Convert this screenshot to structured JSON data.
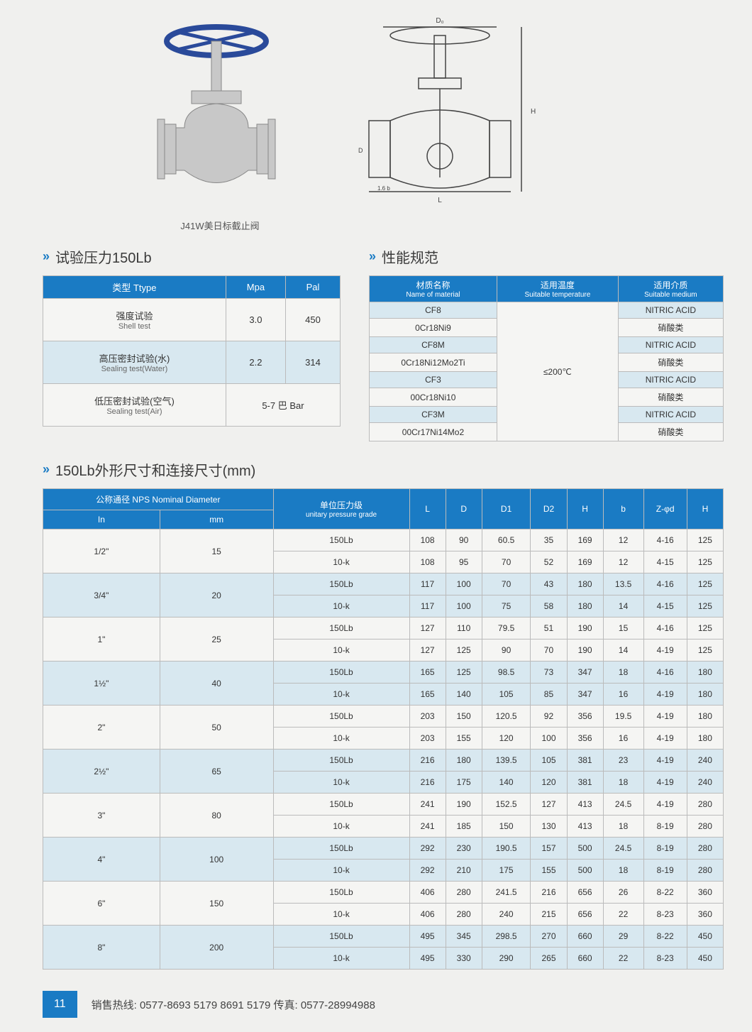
{
  "images": {
    "photo_caption": "J41W美日标截止阀"
  },
  "section1": {
    "title": "试验压力150Lb",
    "headers": [
      "类型 Ttype",
      "Mpa",
      "Pal"
    ],
    "rows": [
      {
        "label_cn": "强度试验",
        "label_en": "Shell test",
        "mpa": "3.0",
        "pal": "450"
      },
      {
        "label_cn": "高压密封试验(水)",
        "label_en": "Sealing test(Water)",
        "mpa": "2.2",
        "pal": "314"
      },
      {
        "label_cn": "低压密封试验(空气)",
        "label_en": "Sealing test(Air)",
        "mpa": "",
        "pal": "5-7 巴 Bar",
        "merged": true
      }
    ]
  },
  "section2": {
    "title": "性能规范",
    "headers": [
      {
        "cn": "材质名称",
        "en": "Name of material"
      },
      {
        "cn": "适用温度",
        "en": "Suitable temperature"
      },
      {
        "cn": "适用介质",
        "en": "Suitable medium"
      }
    ],
    "temp": "≤200℃",
    "rows": [
      {
        "material": "CF8",
        "medium": "NITRIC ACID"
      },
      {
        "material": "0Cr18Ni9",
        "medium": "硝酸类"
      },
      {
        "material": "CF8M",
        "medium": "NITRIC ACID"
      },
      {
        "material": "0Cr18Ni12Mo2Ti",
        "medium": "硝酸类"
      },
      {
        "material": "CF3",
        "medium": "NITRIC ACID"
      },
      {
        "material": "00Cr18Ni10",
        "medium": "硝酸类"
      },
      {
        "material": "CF3M",
        "medium": "NITRIC ACID"
      },
      {
        "material": "00Cr17Ni14Mo2",
        "medium": "硝酸类"
      }
    ]
  },
  "section3": {
    "title": "150Lb外形尺寸和连接尺寸(mm)",
    "group_header": {
      "cn": "公称通径 NPS Nominal Diameter"
    },
    "unit_header": {
      "cn": "单位压力级",
      "en": "unitary pressure grade"
    },
    "sub_headers": [
      "In",
      "mm"
    ],
    "cols": [
      "L",
      "D",
      "D1",
      "D2",
      "H",
      "b",
      "Z-φd",
      "H"
    ],
    "groups": [
      {
        "in": "1/2\"",
        "mm": "15",
        "rows": [
          {
            "grade": "150Lb",
            "v": [
              "108",
              "90",
              "60.5",
              "35",
              "169",
              "12",
              "4-16",
              "125"
            ]
          },
          {
            "grade": "10-k",
            "v": [
              "108",
              "95",
              "70",
              "52",
              "169",
              "12",
              "4-15",
              "125"
            ]
          }
        ]
      },
      {
        "in": "3/4\"",
        "mm": "20",
        "rows": [
          {
            "grade": "150Lb",
            "v": [
              "117",
              "100",
              "70",
              "43",
              "180",
              "13.5",
              "4-16",
              "125"
            ]
          },
          {
            "grade": "10-k",
            "v": [
              "117",
              "100",
              "75",
              "58",
              "180",
              "14",
              "4-15",
              "125"
            ]
          }
        ]
      },
      {
        "in": "1\"",
        "mm": "25",
        "rows": [
          {
            "grade": "150Lb",
            "v": [
              "127",
              "110",
              "79.5",
              "51",
              "190",
              "15",
              "4-16",
              "125"
            ]
          },
          {
            "grade": "10-k",
            "v": [
              "127",
              "125",
              "90",
              "70",
              "190",
              "14",
              "4-19",
              "125"
            ]
          }
        ]
      },
      {
        "in": "1½\"",
        "mm": "40",
        "rows": [
          {
            "grade": "150Lb",
            "v": [
              "165",
              "125",
              "98.5",
              "73",
              "347",
              "18",
              "4-16",
              "180"
            ]
          },
          {
            "grade": "10-k",
            "v": [
              "165",
              "140",
              "105",
              "85",
              "347",
              "16",
              "4-19",
              "180"
            ]
          }
        ]
      },
      {
        "in": "2\"",
        "mm": "50",
        "rows": [
          {
            "grade": "150Lb",
            "v": [
              "203",
              "150",
              "120.5",
              "92",
              "356",
              "19.5",
              "4-19",
              "180"
            ]
          },
          {
            "grade": "10-k",
            "v": [
              "203",
              "155",
              "120",
              "100",
              "356",
              "16",
              "4-19",
              "180"
            ]
          }
        ]
      },
      {
        "in": "2½\"",
        "mm": "65",
        "rows": [
          {
            "grade": "150Lb",
            "v": [
              "216",
              "180",
              "139.5",
              "105",
              "381",
              "23",
              "4-19",
              "240"
            ]
          },
          {
            "grade": "10-k",
            "v": [
              "216",
              "175",
              "140",
              "120",
              "381",
              "18",
              "4-19",
              "240"
            ]
          }
        ]
      },
      {
        "in": "3\"",
        "mm": "80",
        "rows": [
          {
            "grade": "150Lb",
            "v": [
              "241",
              "190",
              "152.5",
              "127",
              "413",
              "24.5",
              "4-19",
              "280"
            ]
          },
          {
            "grade": "10-k",
            "v": [
              "241",
              "185",
              "150",
              "130",
              "413",
              "18",
              "8-19",
              "280"
            ]
          }
        ]
      },
      {
        "in": "4\"",
        "mm": "100",
        "rows": [
          {
            "grade": "150Lb",
            "v": [
              "292",
              "230",
              "190.5",
              "157",
              "500",
              "24.5",
              "8-19",
              "280"
            ]
          },
          {
            "grade": "10-k",
            "v": [
              "292",
              "210",
              "175",
              "155",
              "500",
              "18",
              "8-19",
              "280"
            ]
          }
        ]
      },
      {
        "in": "6\"",
        "mm": "150",
        "rows": [
          {
            "grade": "150Lb",
            "v": [
              "406",
              "280",
              "241.5",
              "216",
              "656",
              "26",
              "8-22",
              "360"
            ]
          },
          {
            "grade": "10-k",
            "v": [
              "406",
              "280",
              "240",
              "215",
              "656",
              "22",
              "8-23",
              "360"
            ]
          }
        ]
      },
      {
        "in": "8\"",
        "mm": "200",
        "rows": [
          {
            "grade": "150Lb",
            "v": [
              "495",
              "345",
              "298.5",
              "270",
              "660",
              "29",
              "8-22",
              "450"
            ]
          },
          {
            "grade": "10-k",
            "v": [
              "495",
              "330",
              "290",
              "265",
              "660",
              "22",
              "8-23",
              "450"
            ]
          }
        ]
      }
    ]
  },
  "footer": {
    "page": "11",
    "hotline_label": "销售热线: ",
    "hotline": "0577-8693 5179    8691 5179",
    "fax_label": "    传真: ",
    "fax": "0577-28994988"
  }
}
